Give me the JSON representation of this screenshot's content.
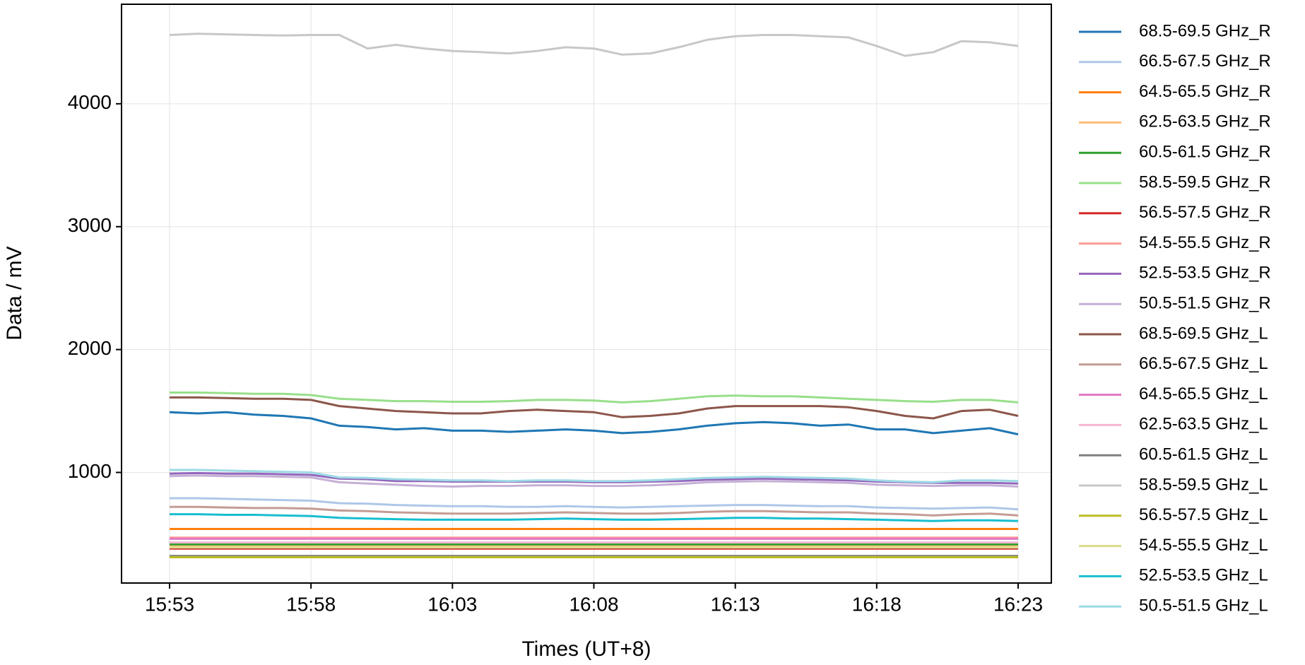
{
  "chart_data": {
    "type": "line",
    "x_label": "Times (UT+8)",
    "y_label": "Data / mV",
    "x": [
      "15:53",
      "15:54",
      "15:55",
      "15:56",
      "15:57",
      "15:58",
      "15:59",
      "16:00",
      "16:01",
      "16:02",
      "16:03",
      "16:04",
      "16:05",
      "16:06",
      "16:07",
      "16:08",
      "16:09",
      "16:10",
      "16:11",
      "16:12",
      "16:13",
      "16:14",
      "16:15",
      "16:16",
      "16:17",
      "16:18",
      "16:19",
      "16:20",
      "16:21",
      "16:22",
      "16:23"
    ],
    "xticks": [
      "15:53",
      "15:58",
      "16:03",
      "16:08",
      "16:13",
      "16:18",
      "16:23"
    ],
    "ylim": [
      100,
      4810
    ],
    "yticks": [
      1000,
      2000,
      3000,
      4000
    ],
    "grid": true,
    "legend": "outside-right",
    "series": [
      {
        "name": "68.5-69.5 GHz_R",
        "color": "#1f77b4",
        "values": [
          1490,
          1480,
          1490,
          1470,
          1460,
          1440,
          1380,
          1370,
          1350,
          1360,
          1340,
          1340,
          1330,
          1340,
          1350,
          1340,
          1320,
          1330,
          1350,
          1380,
          1400,
          1410,
          1400,
          1380,
          1390,
          1350,
          1350,
          1320,
          1340,
          1360,
          1310
        ]
      },
      {
        "name": "66.5-67.5 GHz_R",
        "color": "#aec7e8",
        "values": [
          790,
          790,
          785,
          780,
          775,
          770,
          750,
          745,
          735,
          730,
          725,
          725,
          720,
          720,
          725,
          720,
          715,
          720,
          725,
          730,
          735,
          735,
          730,
          725,
          725,
          715,
          710,
          705,
          710,
          715,
          700
        ]
      },
      {
        "name": "64.5-65.5 GHz_R",
        "color": "#ff7f0e",
        "values": [
          540,
          540,
          540,
          540,
          540,
          540,
          540,
          540,
          540,
          540,
          540,
          540,
          540,
          540,
          540,
          540,
          540,
          540,
          540,
          540,
          540,
          540,
          540,
          540,
          540,
          540,
          540,
          540,
          540,
          540,
          540
        ]
      },
      {
        "name": "62.5-63.5 GHz_R",
        "color": "#ffbb78",
        "values": [
          400,
          400,
          400,
          400,
          400,
          400,
          400,
          400,
          400,
          400,
          400,
          400,
          400,
          400,
          400,
          400,
          400,
          400,
          400,
          400,
          400,
          400,
          400,
          400,
          400,
          400,
          400,
          400,
          400,
          400,
          400
        ]
      },
      {
        "name": "60.5-61.5 GHz_R",
        "color": "#2ca02c",
        "values": [
          415,
          415,
          415,
          415,
          415,
          415,
          415,
          415,
          415,
          415,
          415,
          415,
          415,
          415,
          415,
          415,
          415,
          415,
          415,
          415,
          415,
          415,
          415,
          415,
          415,
          415,
          415,
          415,
          415,
          415,
          415
        ]
      },
      {
        "name": "58.5-59.5 GHz_R",
        "color": "#98df8a",
        "values": [
          1650,
          1650,
          1645,
          1640,
          1640,
          1630,
          1600,
          1590,
          1580,
          1580,
          1575,
          1575,
          1580,
          1590,
          1590,
          1585,
          1570,
          1580,
          1600,
          1620,
          1625,
          1620,
          1620,
          1610,
          1600,
          1590,
          1580,
          1575,
          1590,
          1590,
          1570
        ]
      },
      {
        "name": "56.5-57.5 GHz_R",
        "color": "#d62728",
        "values": [
          380,
          380,
          380,
          380,
          380,
          380,
          380,
          380,
          380,
          380,
          380,
          380,
          380,
          380,
          380,
          380,
          380,
          380,
          380,
          380,
          380,
          380,
          380,
          380,
          380,
          380,
          380,
          380,
          380,
          380,
          380
        ]
      },
      {
        "name": "54.5-55.5 GHz_R",
        "color": "#ff9896",
        "values": [
          470,
          470,
          470,
          470,
          470,
          470,
          470,
          470,
          470,
          470,
          470,
          470,
          470,
          470,
          470,
          470,
          470,
          470,
          470,
          470,
          470,
          470,
          470,
          470,
          470,
          470,
          470,
          470,
          470,
          470,
          470
        ]
      },
      {
        "name": "52.5-53.5 GHz_R",
        "color": "#9467bd",
        "values": [
          990,
          995,
          990,
          990,
          985,
          980,
          950,
          945,
          930,
          930,
          925,
          925,
          925,
          925,
          925,
          920,
          920,
          925,
          930,
          940,
          945,
          950,
          945,
          940,
          935,
          925,
          920,
          915,
          915,
          915,
          910
        ]
      },
      {
        "name": "50.5-51.5 GHz_R",
        "color": "#c5b0d5",
        "values": [
          970,
          975,
          970,
          970,
          965,
          960,
          920,
          910,
          900,
          890,
          885,
          890,
          890,
          895,
          895,
          890,
          890,
          895,
          905,
          920,
          925,
          930,
          925,
          920,
          915,
          900,
          895,
          890,
          895,
          895,
          885
        ]
      },
      {
        "name": "68.5-69.5 GHz_L",
        "color": "#8c564b",
        "values": [
          1610,
          1610,
          1605,
          1600,
          1600,
          1590,
          1540,
          1520,
          1500,
          1490,
          1480,
          1480,
          1500,
          1510,
          1500,
          1490,
          1450,
          1460,
          1480,
          1520,
          1540,
          1540,
          1540,
          1540,
          1530,
          1500,
          1460,
          1440,
          1500,
          1510,
          1460
        ]
      },
      {
        "name": "66.5-67.5 GHz_L",
        "color": "#c49c94",
        "values": [
          720,
          720,
          715,
          710,
          710,
          705,
          690,
          685,
          675,
          670,
          665,
          665,
          665,
          670,
          675,
          670,
          665,
          665,
          670,
          680,
          685,
          685,
          680,
          675,
          675,
          665,
          660,
          650,
          660,
          665,
          650
        ]
      },
      {
        "name": "64.5-65.5 GHz_L",
        "color": "#e377c2",
        "values": [
          460,
          460,
          460,
          460,
          460,
          460,
          460,
          460,
          460,
          460,
          460,
          460,
          460,
          460,
          460,
          460,
          460,
          460,
          460,
          460,
          460,
          460,
          460,
          460,
          460,
          460,
          460,
          460,
          460,
          460,
          460
        ]
      },
      {
        "name": "62.5-63.5 GHz_L",
        "color": "#f7b6d2",
        "values": [
          430,
          430,
          430,
          430,
          430,
          430,
          430,
          430,
          430,
          430,
          430,
          430,
          430,
          430,
          430,
          430,
          430,
          430,
          430,
          430,
          430,
          430,
          430,
          430,
          430,
          430,
          430,
          430,
          430,
          430,
          430
        ]
      },
      {
        "name": "60.5-61.5 GHz_L",
        "color": "#7f7f7f",
        "values": [
          320,
          320,
          320,
          320,
          320,
          320,
          320,
          320,
          320,
          320,
          320,
          320,
          320,
          320,
          320,
          320,
          320,
          320,
          320,
          320,
          320,
          320,
          320,
          320,
          320,
          320,
          320,
          320,
          320,
          320,
          320
        ]
      },
      {
        "name": "58.5-59.5 GHz_L",
        "color": "#c7c7c7",
        "values": [
          4560,
          4570,
          4565,
          4560,
          4555,
          4560,
          4560,
          4450,
          4480,
          4450,
          4430,
          4420,
          4410,
          4430,
          4460,
          4450,
          4400,
          4410,
          4460,
          4520,
          4550,
          4560,
          4560,
          4550,
          4540,
          4470,
          4390,
          4420,
          4510,
          4500,
          4470
        ]
      },
      {
        "name": "56.5-57.5 GHz_L",
        "color": "#bcbd22",
        "values": [
          310,
          310,
          310,
          310,
          310,
          310,
          310,
          310,
          310,
          310,
          310,
          310,
          310,
          310,
          310,
          310,
          310,
          310,
          310,
          310,
          310,
          310,
          310,
          310,
          310,
          310,
          310,
          310,
          310,
          310,
          310
        ]
      },
      {
        "name": "54.5-55.5 GHz_L",
        "color": "#dbdb8d",
        "values": [
          390,
          390,
          390,
          390,
          390,
          390,
          390,
          390,
          390,
          390,
          390,
          390,
          390,
          390,
          390,
          390,
          390,
          390,
          390,
          390,
          390,
          390,
          390,
          390,
          390,
          390,
          390,
          390,
          390,
          390,
          390
        ]
      },
      {
        "name": "52.5-53.5 GHz_L",
        "color": "#17becf",
        "values": [
          660,
          660,
          655,
          655,
          650,
          645,
          630,
          625,
          620,
          615,
          615,
          615,
          615,
          620,
          625,
          620,
          615,
          615,
          620,
          625,
          630,
          630,
          625,
          625,
          620,
          615,
          610,
          605,
          610,
          610,
          605
        ]
      },
      {
        "name": "50.5-51.5 GHz_L",
        "color": "#9edae5",
        "values": [
          1020,
          1020,
          1015,
          1010,
          1005,
          1000,
          960,
          955,
          945,
          940,
          935,
          935,
          930,
          935,
          935,
          930,
          930,
          935,
          945,
          955,
          960,
          965,
          960,
          955,
          950,
          935,
          925,
          920,
          935,
          935,
          930
        ]
      }
    ]
  }
}
